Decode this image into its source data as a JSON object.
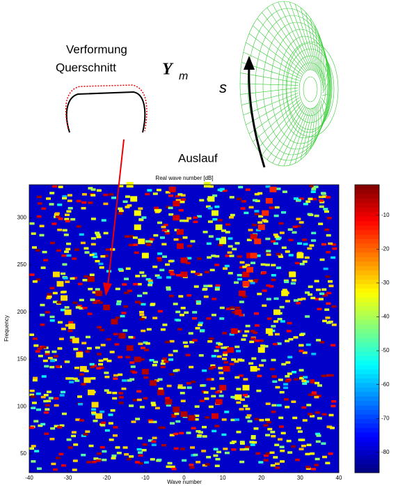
{
  "annotations": {
    "deformation": "Verformung",
    "cross_section": "Querschnitt",
    "mode_symbol": "Y",
    "mode_index": "m",
    "arc_coordinate": "s",
    "outlet": "Auslauf"
  },
  "chart_data": {
    "type": "heatmap",
    "title": "Real wave number [dB]",
    "x_label": "Wave number",
    "y_label": "Frequency",
    "xlim": [
      -40,
      40
    ],
    "xticks": [
      -40,
      -30,
      -20,
      -10,
      0,
      10,
      20,
      30,
      40
    ],
    "ylim": [
      30,
      335
    ],
    "yticks": [
      50,
      100,
      150,
      200,
      250,
      300
    ],
    "clim": [
      -86,
      -1
    ],
    "cticks": [
      -80,
      -70,
      -60,
      -50,
      -40,
      -30,
      -20,
      -10
    ],
    "colormap": "jet",
    "background_level": -80,
    "ridges": [
      {
        "x": [
          -24,
          -22,
          -20,
          -18,
          -16,
          -14,
          -12,
          -10,
          -8,
          -6,
          -4,
          -2,
          0,
          2
        ],
        "y": [
          235,
          220,
          205,
          190,
          175,
          162,
          150,
          137,
          125,
          115,
          105,
          97,
          92,
          88
        ],
        "level": -5
      },
      {
        "x": [
          8,
          9,
          10,
          11,
          12,
          13,
          14,
          15,
          16,
          17,
          18
        ],
        "y": [
          90,
          105,
          120,
          140,
          160,
          180,
          200,
          220,
          240,
          260,
          280
        ],
        "level": -8
      },
      {
        "x": [
          -33,
          -32,
          -31,
          -30,
          -29,
          -28,
          -27,
          -26,
          -25,
          -24,
          -23,
          -22
        ],
        "y": [
          240,
          230,
          215,
          200,
          185,
          170,
          155,
          140,
          128,
          115,
          102,
          90
        ],
        "level": -30
      },
      {
        "x": [
          14,
          16,
          18,
          20,
          22,
          24,
          26,
          28,
          30
        ],
        "y": [
          110,
          120,
          140,
          160,
          180,
          200,
          220,
          240,
          260
        ],
        "level": -32
      },
      {
        "x": [
          -3,
          -2,
          -2,
          -1,
          -1,
          0,
          0
        ],
        "y": [
          330,
          315,
          300,
          285,
          270,
          255,
          240
        ],
        "level": -8
      },
      {
        "x": [
          16,
          17,
          18,
          19,
          20,
          21,
          22,
          23
        ],
        "y": [
          230,
          245,
          260,
          275,
          290,
          305,
          318,
          330
        ],
        "level": -15
      },
      {
        "x": [
          -14,
          -13,
          -12,
          -12,
          -11,
          -10
        ],
        "y": [
          335,
          320,
          305,
          290,
          275,
          260
        ],
        "level": -33
      },
      {
        "x": [
          6,
          7,
          8,
          9,
          10
        ],
        "y": [
          335,
          320,
          305,
          290,
          275
        ],
        "level": -35
      }
    ]
  }
}
